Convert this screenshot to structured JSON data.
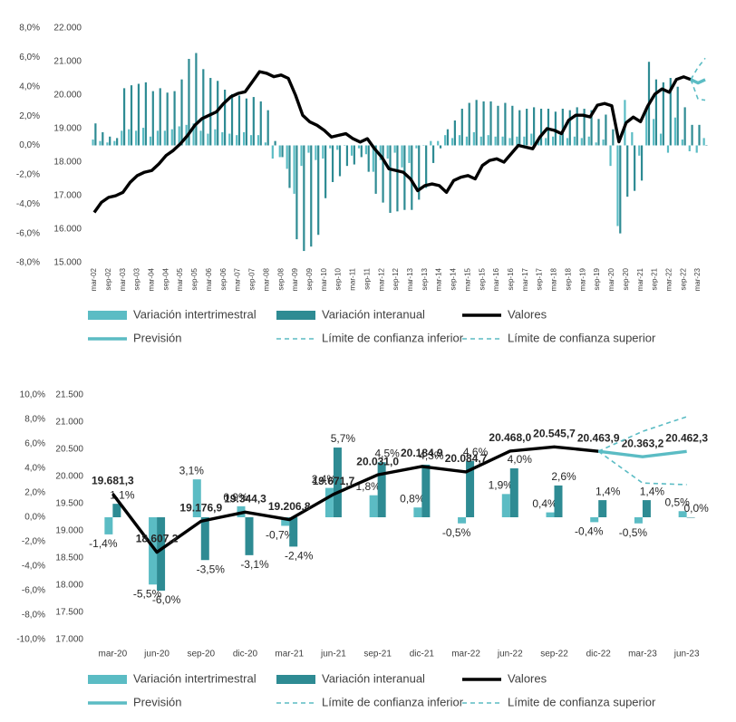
{
  "chart_data": [
    {
      "type": "combo",
      "categories": [
        "mar-02",
        null,
        "sep-02",
        null,
        "mar-03",
        null,
        "sep-03",
        null,
        "mar-04",
        null,
        "sep-04",
        null,
        "mar-05",
        null,
        "sep-05",
        null,
        "mar-06",
        null,
        "sep-06",
        null,
        "mar-07",
        null,
        "sep-07",
        null,
        "mar-08",
        null,
        "sep-08",
        null,
        "mar-09",
        null,
        "sep-09",
        null,
        "mar-10",
        null,
        "sep-10",
        null,
        "mar-11",
        null,
        "sep-11",
        null,
        "mar-12",
        null,
        "sep-12",
        null,
        "mar-13",
        null,
        "sep-13",
        null,
        "mar-14",
        null,
        "sep-14",
        null,
        "mar-15",
        null,
        "sep-15",
        null,
        "mar-16",
        null,
        "sep-16",
        null,
        "mar-17",
        null,
        "sep-17",
        null,
        "mar-18",
        null,
        "sep-18",
        null,
        "mar-19",
        null,
        "sep-19",
        null,
        "mar-20",
        null,
        "sep-20",
        null,
        "mar-21",
        null,
        "sep-21",
        null,
        "mar-22",
        null,
        "sep-22",
        null,
        "mar-23",
        null
      ],
      "ylim": [
        -8,
        8
      ],
      "yticks": [
        {
          "value": -8,
          "label": "-8,0%"
        },
        {
          "value": -6,
          "label": "-6,0%"
        },
        {
          "value": -4,
          "label": "-4,0%"
        },
        {
          "value": -2,
          "label": "-2,0%"
        },
        {
          "value": 0,
          "label": "0,0%"
        },
        {
          "value": 2,
          "label": "2,0%"
        },
        {
          "value": 4,
          "label": "4,0%"
        },
        {
          "value": 6,
          "label": "6,0%"
        },
        {
          "value": 8,
          "label": "8,0%"
        }
      ],
      "y2lim": [
        15000,
        22000
      ],
      "y2ticks": [
        {
          "value": 15000,
          "label": "15.000"
        },
        {
          "value": 16000,
          "label": "16.000"
        },
        {
          "value": 17000,
          "label": "17.000"
        },
        {
          "value": 18000,
          "label": "18.000"
        },
        {
          "value": 19000,
          "label": "19.000"
        },
        {
          "value": 20000,
          "label": "20.000"
        },
        {
          "value": 21000,
          "label": "21.000"
        },
        {
          "value": 22000,
          "label": "22.000"
        }
      ],
      "series": [
        {
          "name": "Variación intertrimestral",
          "type": "bar",
          "color": "#5bbcc4",
          "values": [
            0.4,
            0.3,
            0.2,
            0.3,
            1.0,
            1.1,
            1.0,
            1.2,
            0.6,
            1.0,
            1.0,
            1.1,
            1.3,
            1.4,
            1.5,
            1.0,
            0.8,
            1.1,
            0.9,
            0.8,
            0.7,
            0.9,
            0.7,
            0.7,
            0.2,
            -0.9,
            -0.8,
            -1.6,
            -3.3,
            -1.4,
            -0.5,
            -1.0,
            -0.9,
            -0.2,
            -0.3,
            0.0,
            -0.7,
            -0.2,
            -0.6,
            -1.8,
            -1.0,
            -0.9,
            -0.5,
            -1.5,
            -1.2,
            -0.2,
            0.0,
            0.3,
            0.3,
            0.7,
            0.5,
            0.7,
            0.6,
            0.9,
            0.6,
            0.7,
            0.6,
            0.6,
            0.5,
            0.6,
            0.6,
            0.8,
            0.5,
            0.5,
            0.6,
            0.7,
            0.5,
            0.6,
            0.5,
            0.6,
            0.2,
            0.4,
            -1.4,
            -5.5,
            3.1,
            0.9,
            -0.7,
            2.4,
            1.8,
            0.8,
            -0.5,
            1.9,
            0.4,
            -0.4,
            -0.5,
            0.5
          ]
        },
        {
          "name": "Variación interanual",
          "type": "bar",
          "color": "#2e8b93",
          "values": [
            1.5,
            0.9,
            0.6,
            0.5,
            3.9,
            4.1,
            4.2,
            4.3,
            3.7,
            3.9,
            3.6,
            3.7,
            4.5,
            5.9,
            6.3,
            5.2,
            4.6,
            4.4,
            3.8,
            3.5,
            3.4,
            3.2,
            3.3,
            3.0,
            2.4,
            0.3,
            -0.8,
            -2.9,
            -6.4,
            -7.2,
            -6.9,
            -6.1,
            -3.6,
            -2.5,
            -2.1,
            -1.4,
            -1.3,
            -0.8,
            -1.8,
            -3.3,
            -3.9,
            -4.6,
            -4.5,
            -4.4,
            -4.4,
            -3.7,
            -2.9,
            -1.2,
            -0.2,
            1.1,
            1.7,
            2.5,
            2.9,
            3.1,
            3.0,
            3.0,
            2.7,
            2.9,
            2.7,
            2.4,
            2.5,
            2.6,
            2.5,
            2.5,
            2.3,
            2.5,
            2.4,
            2.6,
            2.5,
            2.4,
            1.8,
            2.1,
            1.1,
            -6.0,
            -3.5,
            -3.1,
            -2.4,
            5.7,
            4.5,
            4.3,
            4.6,
            4.0,
            2.6,
            1.4,
            1.4,
            0.0
          ]
        },
        {
          "name": "Valores",
          "type": "line",
          "axis": "y2",
          "color": "#000000",
          "line_style": "solid",
          "values": [
            16500,
            16800,
            16950,
            17000,
            17100,
            17400,
            17600,
            17700,
            17750,
            17950,
            18200,
            18350,
            18550,
            18800,
            19100,
            19300,
            19400,
            19500,
            19750,
            19950,
            20050,
            20100,
            20400,
            20700,
            20650,
            20550,
            20600,
            20500,
            20000,
            19400,
            19200,
            19100,
            18950,
            18750,
            18800,
            18850,
            18700,
            18600,
            18700,
            18400,
            18150,
            17800,
            17750,
            17700,
            17500,
            17150,
            17300,
            17350,
            17300,
            17100,
            17450,
            17550,
            17600,
            17500,
            17900,
            18050,
            18100,
            18000,
            18250,
            18500,
            18450,
            18400,
            18750,
            19000,
            18950,
            18850,
            19250,
            19400,
            19400,
            19350,
            19700,
            19750,
            19681.3,
            18607.2,
            19176.9,
            19344.3,
            19206.8,
            19671.7,
            20031,
            20184.9,
            20084.7,
            20468,
            20545.7,
            20463.9,
            null,
            null
          ]
        },
        {
          "name": "Previsión",
          "type": "line",
          "axis": "y2",
          "color": "#5bbcc4",
          "line_style": "solid",
          "values": [
            null,
            null,
            null,
            null,
            null,
            null,
            null,
            null,
            null,
            null,
            null,
            null,
            null,
            null,
            null,
            null,
            null,
            null,
            null,
            null,
            null,
            null,
            null,
            null,
            null,
            null,
            null,
            null,
            null,
            null,
            null,
            null,
            null,
            null,
            null,
            null,
            null,
            null,
            null,
            null,
            null,
            null,
            null,
            null,
            null,
            null,
            null,
            null,
            null,
            null,
            null,
            null,
            null,
            null,
            null,
            null,
            null,
            null,
            null,
            null,
            null,
            null,
            null,
            null,
            null,
            null,
            null,
            null,
            null,
            null,
            null,
            null,
            null,
            null,
            null,
            null,
            null,
            null,
            null,
            null,
            null,
            null,
            null,
            20463.9,
            20363.2,
            20462.3
          ]
        },
        {
          "name": "Límite de confianza inferior",
          "type": "line",
          "axis": "y2",
          "color": "#5bbcc4",
          "line_style": "dashed",
          "values": [
            null,
            null,
            null,
            null,
            null,
            null,
            null,
            null,
            null,
            null,
            null,
            null,
            null,
            null,
            null,
            null,
            null,
            null,
            null,
            null,
            null,
            null,
            null,
            null,
            null,
            null,
            null,
            null,
            null,
            null,
            null,
            null,
            null,
            null,
            null,
            null,
            null,
            null,
            null,
            null,
            null,
            null,
            null,
            null,
            null,
            null,
            null,
            null,
            null,
            null,
            null,
            null,
            null,
            null,
            null,
            null,
            null,
            null,
            null,
            null,
            null,
            null,
            null,
            null,
            null,
            null,
            null,
            null,
            null,
            null,
            null,
            null,
            null,
            null,
            null,
            null,
            null,
            null,
            null,
            null,
            null,
            null,
            null,
            20463.9,
            19880,
            19850
          ]
        },
        {
          "name": "Límite de confianza superior",
          "type": "line",
          "axis": "y2",
          "color": "#5bbcc4",
          "line_style": "dashed",
          "values": [
            null,
            null,
            null,
            null,
            null,
            null,
            null,
            null,
            null,
            null,
            null,
            null,
            null,
            null,
            null,
            null,
            null,
            null,
            null,
            null,
            null,
            null,
            null,
            null,
            null,
            null,
            null,
            null,
            null,
            null,
            null,
            null,
            null,
            null,
            null,
            null,
            null,
            null,
            null,
            null,
            null,
            null,
            null,
            null,
            null,
            null,
            null,
            null,
            null,
            null,
            null,
            null,
            null,
            null,
            null,
            null,
            null,
            null,
            null,
            null,
            null,
            null,
            null,
            null,
            null,
            null,
            null,
            null,
            null,
            null,
            null,
            null,
            null,
            null,
            null,
            null,
            null,
            null,
            null,
            null,
            null,
            null,
            null,
            20463.9,
            20830,
            21100
          ]
        }
      ]
    },
    {
      "type": "combo",
      "categories": [
        "mar-20",
        "jun-20",
        "sep-20",
        "dic-20",
        "mar-21",
        "jun-21",
        "sep-21",
        "dic-21",
        "mar-22",
        "jun-22",
        "sep-22",
        "dic-22",
        "mar-23",
        "jun-23"
      ],
      "ylim": [
        -10,
        10
      ],
      "yticks": [
        {
          "value": -10,
          "label": "-10,0%"
        },
        {
          "value": -8,
          "label": "-8,0%"
        },
        {
          "value": -6,
          "label": "-6,0%"
        },
        {
          "value": -4,
          "label": "-4,0%"
        },
        {
          "value": -2,
          "label": "-2,0%"
        },
        {
          "value": 0,
          "label": "0,0%"
        },
        {
          "value": 2,
          "label": "2,0%"
        },
        {
          "value": 4,
          "label": "4,0%"
        },
        {
          "value": 6,
          "label": "6,0%"
        },
        {
          "value": 8,
          "label": "8,0%"
        },
        {
          "value": 10,
          "label": "10,0%"
        }
      ],
      "y2lim": [
        17000,
        21500
      ],
      "y2ticks": [
        {
          "value": 17000,
          "label": "17.000"
        },
        {
          "value": 17500,
          "label": "17.500"
        },
        {
          "value": 18000,
          "label": "18.000"
        },
        {
          "value": 18500,
          "label": "18.500"
        },
        {
          "value": 19000,
          "label": "19.000"
        },
        {
          "value": 19500,
          "label": "19.500"
        },
        {
          "value": 20000,
          "label": "20.000"
        },
        {
          "value": 20500,
          "label": "20.500"
        },
        {
          "value": 21000,
          "label": "21.000"
        },
        {
          "value": 21500,
          "label": "21.500"
        }
      ],
      "series": [
        {
          "name": "Variación intertrimestral",
          "type": "bar",
          "color": "#5bbcc4",
          "values": [
            -1.4,
            -5.5,
            3.1,
            0.9,
            -0.7,
            2.4,
            1.8,
            0.8,
            -0.5,
            1.9,
            0.4,
            -0.4,
            -0.5,
            0.5
          ],
          "value_labels": [
            "-1,4%",
            "-5,5%",
            "3,1%",
            "0,9%",
            "-0,7%",
            "2,4%",
            "1,8%",
            "0,8%",
            "-0,5%",
            "1,9%",
            "0,4%",
            "-0,4%",
            "-0,5%",
            "0,5%"
          ]
        },
        {
          "name": "Variación interanual",
          "type": "bar",
          "color": "#2e8b93",
          "values": [
            1.1,
            -6.0,
            -3.5,
            -3.1,
            -2.4,
            5.7,
            4.5,
            4.3,
            4.6,
            4.0,
            2.6,
            1.4,
            1.4,
            0.0
          ],
          "value_labels": [
            "1,1%",
            "-6,0%",
            "-3,5%",
            "-3,1%",
            "-2,4%",
            "5,7%",
            "4,5%",
            "4,3%",
            "4,6%",
            "4,0%",
            "2,6%",
            "1,4%",
            "1,4%",
            "0,0%"
          ]
        },
        {
          "name": "Valores",
          "type": "line",
          "axis": "y2",
          "color": "#000000",
          "line_style": "solid",
          "values": [
            19681.3,
            18607.2,
            19176.9,
            19344.3,
            19206.8,
            19671.7,
            20031,
            20184.9,
            20084.7,
            20468,
            20545.7,
            20463.9,
            null,
            null
          ],
          "value_labels": [
            "19.681,3",
            "18.607,2",
            "19.176,9",
            "19.344,3",
            "19.206,8",
            "19.671,7",
            "20.031,0",
            "20.184,9",
            "20.084,7",
            "20.468,0",
            "20.545,7",
            "20.463,9",
            null,
            null
          ]
        },
        {
          "name": "Previsión",
          "type": "line",
          "axis": "y2",
          "color": "#5bbcc4",
          "line_style": "solid",
          "values": [
            null,
            null,
            null,
            null,
            null,
            null,
            null,
            null,
            null,
            null,
            null,
            20463.9,
            20363.2,
            20462.3
          ],
          "value_labels": [
            null,
            null,
            null,
            null,
            null,
            null,
            null,
            null,
            null,
            null,
            null,
            null,
            "20.363,2",
            "20.462,3"
          ]
        },
        {
          "name": "Límite de confianza inferior",
          "type": "line",
          "axis": "y2",
          "color": "#5bbcc4",
          "line_style": "dashed",
          "values": [
            null,
            null,
            null,
            null,
            null,
            null,
            null,
            null,
            null,
            null,
            null,
            20463.9,
            19880,
            19850
          ]
        },
        {
          "name": "Límite de confianza superior",
          "type": "line",
          "axis": "y2",
          "color": "#5bbcc4",
          "line_style": "dashed",
          "values": [
            null,
            null,
            null,
            null,
            null,
            null,
            null,
            null,
            null,
            null,
            null,
            20463.9,
            20830,
            21100
          ]
        }
      ]
    }
  ]
}
